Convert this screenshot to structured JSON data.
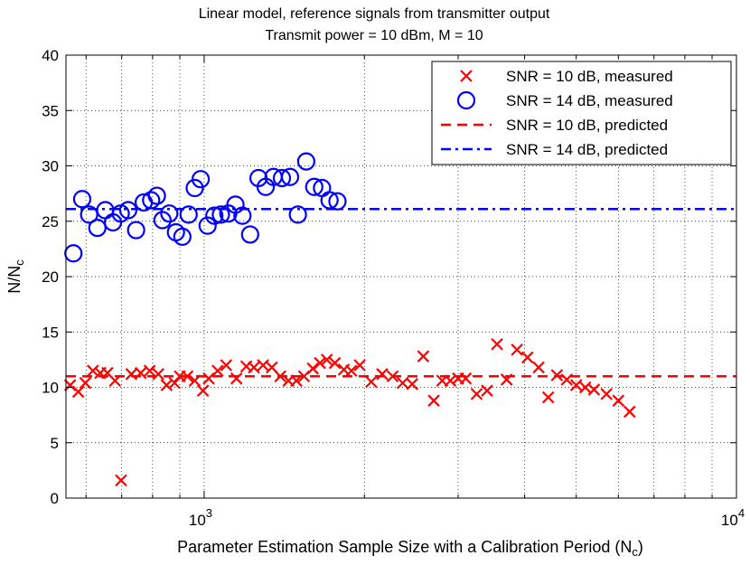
{
  "chart_data": {
    "type": "scatter",
    "title_lines": [
      "Linear model, reference signals from transmitter output",
      "Transmit power = 10 dBm, M = 10"
    ],
    "xlabel": "Parameter Estimation Sample Size with a Calibration Period (N",
    "xlabel_sub": "c",
    "xlabel_end": ")",
    "ylabel": "N/N",
    "ylabel_sub": "c",
    "x_scale": "log",
    "xlim": [
      550,
      10000
    ],
    "ylim": [
      0,
      40
    ],
    "y_ticks": [
      0,
      5,
      10,
      15,
      20,
      25,
      30,
      35,
      40
    ],
    "x_major_ticks": [
      {
        "value": 1000,
        "base": "10",
        "exp": "3"
      },
      {
        "value": 10000,
        "base": "10",
        "exp": "4"
      }
    ],
    "x_minor_ticks": [
      600,
      700,
      800,
      900,
      2000,
      3000,
      4000,
      5000,
      6000,
      7000,
      8000,
      9000
    ],
    "grid": true,
    "legend_position": "top-right",
    "series": [
      {
        "name": "SNR = 10 dB, measured",
        "marker": "x",
        "color": "#ff0000",
        "points": [
          [
            560,
            10.2
          ],
          [
            580,
            9.6
          ],
          [
            598,
            10.4
          ],
          [
            618,
            11.5
          ],
          [
            638,
            11.3
          ],
          [
            658,
            11.3
          ],
          [
            680,
            10.6
          ],
          [
            698,
            1.6
          ],
          [
            730,
            11.2
          ],
          [
            760,
            11.3
          ],
          [
            790,
            11.5
          ],
          [
            820,
            11.2
          ],
          [
            850,
            10.2
          ],
          [
            880,
            10.4
          ],
          [
            900,
            11.0
          ],
          [
            930,
            11.0
          ],
          [
            960,
            10.6
          ],
          [
            995,
            9.7
          ],
          [
            1020,
            10.8
          ],
          [
            1060,
            11.5
          ],
          [
            1100,
            12.0
          ],
          [
            1150,
            10.8
          ],
          [
            1200,
            11.9
          ],
          [
            1240,
            11.8
          ],
          [
            1290,
            12.0
          ],
          [
            1340,
            11.8
          ],
          [
            1390,
            11.0
          ],
          [
            1440,
            10.6
          ],
          [
            1490,
            10.6
          ],
          [
            1540,
            11.0
          ],
          [
            1600,
            11.7
          ],
          [
            1650,
            12.2
          ],
          [
            1700,
            12.5
          ],
          [
            1760,
            12.2
          ],
          [
            1830,
            11.6
          ],
          [
            1890,
            11.5
          ],
          [
            1960,
            12.0
          ],
          [
            2060,
            10.5
          ],
          [
            2160,
            11.2
          ],
          [
            2260,
            11.0
          ],
          [
            2360,
            10.4
          ],
          [
            2460,
            10.3
          ],
          [
            2580,
            12.8
          ],
          [
            2700,
            8.8
          ],
          [
            2800,
            10.6
          ],
          [
            2900,
            10.6
          ],
          [
            3000,
            10.8
          ],
          [
            3100,
            10.8
          ],
          [
            3250,
            9.4
          ],
          [
            3400,
            9.7
          ],
          [
            3550,
            13.9
          ],
          [
            3700,
            10.7
          ],
          [
            3870,
            13.4
          ],
          [
            4050,
            12.7
          ],
          [
            4250,
            11.8
          ],
          [
            4430,
            9.1
          ],
          [
            4600,
            11.1
          ],
          [
            4800,
            10.7
          ],
          [
            5000,
            10.2
          ],
          [
            5200,
            10.0
          ],
          [
            5400,
            9.8
          ],
          [
            5700,
            9.4
          ],
          [
            6000,
            8.8
          ],
          [
            6300,
            7.8
          ]
        ]
      },
      {
        "name": "SNR = 14 dB, measured",
        "marker": "o",
        "color": "#0000ff",
        "points": [
          [
            568,
            22.1
          ],
          [
            590,
            27.0
          ],
          [
            608,
            25.6
          ],
          [
            630,
            24.4
          ],
          [
            652,
            26.0
          ],
          [
            674,
            24.9
          ],
          [
            697,
            25.7
          ],
          [
            720,
            26.0
          ],
          [
            745,
            24.2
          ],
          [
            770,
            26.7
          ],
          [
            795,
            26.9
          ],
          [
            815,
            27.3
          ],
          [
            835,
            25.1
          ],
          [
            860,
            25.7
          ],
          [
            885,
            24.0
          ],
          [
            910,
            23.6
          ],
          [
            935,
            25.6
          ],
          [
            960,
            28.0
          ],
          [
            985,
            28.8
          ],
          [
            1015,
            24.6
          ],
          [
            1045,
            25.5
          ],
          [
            1075,
            25.6
          ],
          [
            1110,
            25.7
          ],
          [
            1145,
            26.5
          ],
          [
            1180,
            25.5
          ],
          [
            1220,
            23.8
          ],
          [
            1265,
            28.9
          ],
          [
            1305,
            28.1
          ],
          [
            1350,
            29.0
          ],
          [
            1400,
            28.9
          ],
          [
            1450,
            29.0
          ],
          [
            1500,
            25.6
          ],
          [
            1555,
            30.4
          ],
          [
            1610,
            28.1
          ],
          [
            1665,
            28.0
          ],
          [
            1720,
            26.9
          ],
          [
            1780,
            26.8
          ]
        ]
      },
      {
        "name": "SNR = 10 dB, predicted",
        "line": "dashed",
        "color": "#ff0000",
        "x_range": [
          550,
          10000
        ],
        "value": 11.0
      },
      {
        "name": "SNR = 14 dB, predicted",
        "line": "dashdot",
        "color": "#0000ff",
        "x_range": [
          550,
          10000
        ],
        "value": 26.1
      }
    ]
  }
}
